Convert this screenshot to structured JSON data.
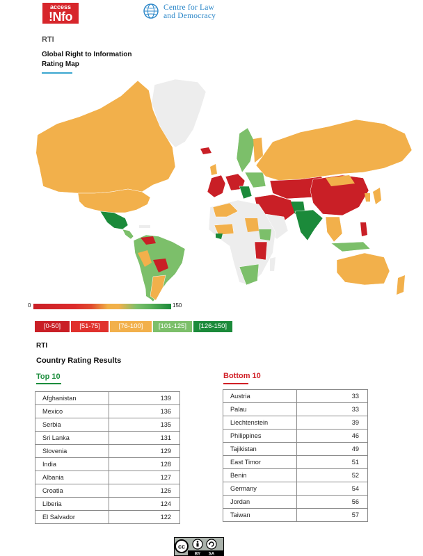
{
  "logos": {
    "access_info": {
      "line1": "access",
      "line2": "!Nfo"
    },
    "clad": {
      "line1": "Centre for Law",
      "line2": "and Democracy"
    }
  },
  "header": {
    "rti_label": "RTI",
    "map_title_line1": "Global Right to Information",
    "map_title_line2": "Rating Map"
  },
  "scale": {
    "min": "0",
    "max": "150"
  },
  "legend": [
    {
      "label": "[0-50]",
      "color": "#c91f26"
    },
    {
      "label": "[51-75]",
      "color": "#e0312d"
    },
    {
      "label": "[76-100]",
      "color": "#f2b04b"
    },
    {
      "label": "[101-125]",
      "color": "#7cbf6a"
    },
    {
      "label": "[126-150]",
      "color": "#1b8a3a"
    }
  ],
  "results": {
    "rti_label": "RTI",
    "title": "Country Rating Results",
    "top10_heading": "Top 10",
    "bottom10_heading": "Bottom 10",
    "top10": [
      {
        "country": "Afghanistan",
        "score": "139"
      },
      {
        "country": "Mexico",
        "score": "136"
      },
      {
        "country": "Serbia",
        "score": "135"
      },
      {
        "country": "Sri Lanka",
        "score": "131"
      },
      {
        "country": "Slovenia",
        "score": "129"
      },
      {
        "country": "India",
        "score": "128"
      },
      {
        "country": "Albania",
        "score": "127"
      },
      {
        "country": "Croatia",
        "score": "126"
      },
      {
        "country": "Liberia",
        "score": "124"
      },
      {
        "country": "El Salvador",
        "score": "122"
      }
    ],
    "bottom10": [
      {
        "country": "Austria",
        "score": "33"
      },
      {
        "country": "Palau",
        "score": "33"
      },
      {
        "country": "Liechtenstein",
        "score": "39"
      },
      {
        "country": "Philippines",
        "score": "46"
      },
      {
        "country": "Tajikistan",
        "score": "49"
      },
      {
        "country": "East Timor",
        "score": "51"
      },
      {
        "country": "Benin",
        "score": "52"
      },
      {
        "country": "Germany",
        "score": "54"
      },
      {
        "country": "Jordan",
        "score": "56"
      },
      {
        "country": "Taiwan",
        "score": "57"
      }
    ]
  },
  "license": {
    "by": "BY",
    "sa": "SA"
  }
}
